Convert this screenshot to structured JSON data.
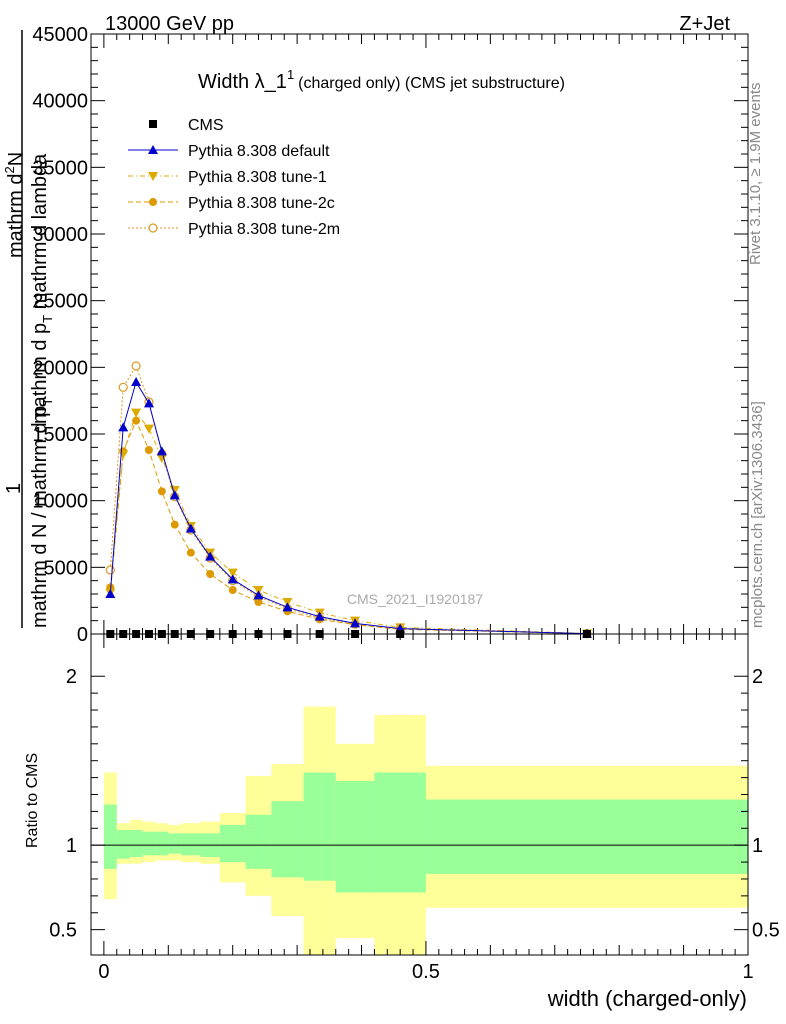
{
  "header": {
    "left_label": "13000 GeV pp",
    "right_label": "Z+Jet"
  },
  "side_labels": {
    "rivet": "Rivet 3.1.10, ≥ 1.9M events",
    "mcplots": "mcplots.cern.ch [arXiv:1306.3436]"
  },
  "watermark": "CMS_2021_I1920187",
  "main_title": {
    "text": "Width λ_1",
    "sup": "1",
    "sub": "(charged only) (CMS jet substructure)"
  },
  "y_label": {
    "line1": "mathrm d",
    "line1_sup": "2",
    "line1_end": "N",
    "line2": "mathrm d p",
    "line2_sub": "T",
    "line2_end": " mathrm d lambda",
    "line3": "1",
    "line4": "mathrm d N / mathrm d p",
    "line4_sub": "T"
  },
  "ratio_y_label": "Ratio to CMS",
  "x_label": "width (charged-only)",
  "colors": {
    "cms": "#000000",
    "default": "#0000cc",
    "tune1": "#ddaa00",
    "tune2c": "#dd9900",
    "tune2m": "#dd9922",
    "band_inner": "#99ff99",
    "band_outer": "#ffff99"
  },
  "chart_data": [
    {
      "type": "scatter",
      "title": "Width λ_1^1 (charged only) (CMS jet substructure)",
      "xlabel": "width (charged-only)",
      "ylabel": "1 / mathrm d N / mathrm d p_T · mathrm d^2N / mathrm d p_T mathrm d lambda",
      "xlim": [
        -0.02,
        1.0
      ],
      "ylim": [
        0,
        45000
      ],
      "x_ticks": [
        0,
        0.5,
        1
      ],
      "x_tick_labels": [
        "0",
        "0.5",
        "1"
      ],
      "y_ticks": [
        0,
        5000,
        10000,
        15000,
        20000,
        25000,
        30000,
        35000,
        40000,
        45000
      ],
      "y_tick_labels": [
        "0",
        "5000",
        "10000",
        "15000",
        "20000",
        "25000",
        "30000",
        "35000",
        "40000",
        "45000"
      ],
      "legend_position": "top-left",
      "series": [
        {
          "name": "CMS",
          "marker": "square",
          "x": [
            0.01,
            0.03,
            0.05,
            0.07,
            0.09,
            0.11,
            0.135,
            0.165,
            0.2,
            0.24,
            0.285,
            0.335,
            0.39,
            0.46,
            0.75
          ],
          "y": [
            0,
            0,
            0,
            0,
            0,
            0,
            0,
            0,
            0,
            0,
            0,
            0,
            0,
            0,
            0
          ]
        },
        {
          "name": "Pythia 8.308 default",
          "marker": "triangle-up",
          "x": [
            0.01,
            0.03,
            0.05,
            0.07,
            0.09,
            0.11,
            0.135,
            0.165,
            0.2,
            0.24,
            0.285,
            0.335,
            0.39,
            0.46,
            0.75
          ],
          "y": [
            3000,
            15500,
            18900,
            17300,
            13700,
            10400,
            7900,
            5800,
            4100,
            2900,
            2000,
            1300,
            800,
            400,
            30
          ]
        },
        {
          "name": "Pythia 8.308 tune-1",
          "marker": "triangle-down",
          "x": [
            0.01,
            0.03,
            0.05,
            0.07,
            0.09,
            0.11,
            0.135,
            0.165,
            0.2,
            0.24,
            0.285,
            0.335,
            0.39,
            0.46,
            0.75
          ],
          "y": [
            3100,
            13500,
            16600,
            15400,
            13200,
            10800,
            8100,
            6100,
            4600,
            3300,
            2400,
            1600,
            1000,
            500,
            40
          ]
        },
        {
          "name": "Pythia 8.308 tune-2c",
          "marker": "circle",
          "x": [
            0.01,
            0.03,
            0.05,
            0.07,
            0.09,
            0.11,
            0.135,
            0.165,
            0.2,
            0.24,
            0.285,
            0.335,
            0.39,
            0.46,
            0.75
          ],
          "y": [
            3500,
            13700,
            16000,
            13800,
            10700,
            8200,
            6100,
            4500,
            3300,
            2400,
            1700,
            1100,
            700,
            350,
            30
          ]
        },
        {
          "name": "Pythia 8.308 tune-2m",
          "marker": "circle-open",
          "x": [
            0.01,
            0.03,
            0.05,
            0.07,
            0.09,
            0.11,
            0.135,
            0.165,
            0.2,
            0.24,
            0.285,
            0.335,
            0.39,
            0.46,
            0.75
          ],
          "y": [
            4800,
            18500,
            20100,
            17400,
            13500,
            10300,
            7800,
            5700,
            4000,
            2800,
            1900,
            1200,
            750,
            380,
            30
          ]
        }
      ]
    },
    {
      "type": "area",
      "ylabel": "Ratio to CMS",
      "xlim": [
        -0.02,
        1.0
      ],
      "ylim": [
        0.35,
        2.25
      ],
      "y_ticks": [
        0.5,
        1,
        2
      ],
      "y_tick_labels": [
        "0.5",
        "1",
        "2"
      ],
      "bin_edges": [
        0,
        0.02,
        0.04,
        0.06,
        0.08,
        0.1,
        0.12,
        0.15,
        0.18,
        0.22,
        0.26,
        0.31,
        0.36,
        0.42,
        0.5,
        1.0
      ],
      "series": [
        {
          "name": "stat",
          "lower": [
            0.86,
            0.92,
            0.93,
            0.94,
            0.94,
            0.95,
            0.94,
            0.93,
            0.9,
            0.86,
            0.81,
            0.79,
            0.72,
            0.72,
            0.83
          ],
          "upper": [
            1.24,
            1.09,
            1.09,
            1.08,
            1.08,
            1.07,
            1.07,
            1.07,
            1.12,
            1.18,
            1.26,
            1.43,
            1.38,
            1.43,
            1.27
          ]
        },
        {
          "name": "total",
          "lower": [
            0.68,
            0.89,
            0.89,
            0.9,
            0.91,
            0.91,
            0.9,
            0.89,
            0.78,
            0.7,
            0.58,
            0.35,
            0.45,
            0.35,
            0.63
          ],
          "upper": [
            1.43,
            1.13,
            1.15,
            1.14,
            1.13,
            1.12,
            1.13,
            1.14,
            1.19,
            1.41,
            1.48,
            1.82,
            1.6,
            1.77,
            1.47
          ]
        }
      ],
      "reference_line": 1
    }
  ]
}
